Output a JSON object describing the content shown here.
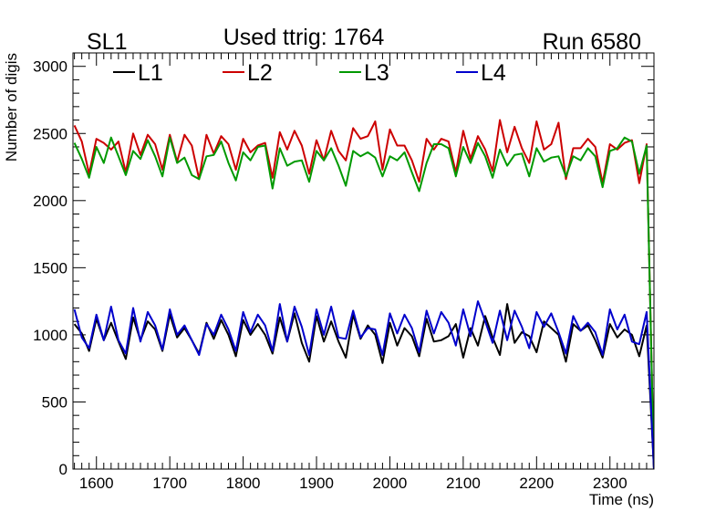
{
  "header": {
    "left_label": "SL1",
    "center_label": "Used ttrig: 1764",
    "right_label": "Run 6580"
  },
  "chart_data": {
    "type": "line",
    "title": "Used ttrig: 1764",
    "xlabel": "Time (ns)",
    "ylabel": "Number of digis",
    "xlim": [
      1568,
      2360
    ],
    "ylim": [
      0,
      3100
    ],
    "x_ticks": [
      1600,
      1700,
      1800,
      1900,
      2000,
      2100,
      2200,
      2300
    ],
    "y_ticks": [
      0,
      500,
      1000,
      1500,
      2000,
      2500,
      3000
    ],
    "legend_position": "top",
    "x": [
      1570,
      1580,
      1590,
      1600,
      1610,
      1620,
      1630,
      1640,
      1650,
      1660,
      1670,
      1680,
      1690,
      1700,
      1710,
      1720,
      1730,
      1740,
      1750,
      1760,
      1770,
      1780,
      1790,
      1800,
      1810,
      1820,
      1830,
      1840,
      1850,
      1860,
      1870,
      1880,
      1890,
      1900,
      1910,
      1920,
      1930,
      1940,
      1950,
      1960,
      1970,
      1980,
      1990,
      2000,
      2010,
      2020,
      2030,
      2040,
      2050,
      2060,
      2070,
      2080,
      2090,
      2100,
      2110,
      2120,
      2130,
      2140,
      2150,
      2160,
      2170,
      2180,
      2190,
      2200,
      2210,
      2220,
      2230,
      2240,
      2250,
      2260,
      2270,
      2280,
      2290,
      2300,
      2310,
      2320,
      2330,
      2340,
      2350,
      2360
    ],
    "series": [
      {
        "name": "L1",
        "color": "#000000",
        "values": [
          1080,
          1010,
          880,
          1120,
          960,
          1090,
          950,
          820,
          1130,
          960,
          1100,
          1040,
          880,
          1150,
          980,
          1050,
          960,
          860,
          1090,
          970,
          1110,
          1000,
          840,
          1110,
          1000,
          1080,
          1000,
          860,
          1130,
          950,
          1160,
          940,
          800,
          1140,
          950,
          1100,
          950,
          830,
          1150,
          970,
          1070,
          1000,
          790,
          1090,
          920,
          1050,
          990,
          840,
          1120,
          950,
          960,
          990,
          1080,
          830,
          1050,
          920,
          1140,
          980,
          850,
          1230,
          940,
          1020,
          990,
          870,
          1100,
          1050,
          1000,
          800,
          1080,
          1030,
          1070,
          960,
          830,
          1080,
          980,
          1040,
          1000,
          840,
          1070,
          0
        ]
      },
      {
        "name": "L2",
        "color": "#cc0000",
        "values": [
          2560,
          2440,
          2200,
          2460,
          2430,
          2380,
          2440,
          2210,
          2500,
          2340,
          2490,
          2420,
          2230,
          2490,
          2290,
          2490,
          2410,
          2160,
          2490,
          2350,
          2480,
          2420,
          2230,
          2460,
          2360,
          2410,
          2430,
          2170,
          2510,
          2380,
          2520,
          2410,
          2200,
          2450,
          2300,
          2520,
          2370,
          2300,
          2540,
          2460,
          2480,
          2590,
          2230,
          2530,
          2410,
          2410,
          2300,
          2140,
          2460,
          2380,
          2460,
          2440,
          2210,
          2520,
          2310,
          2480,
          2380,
          2220,
          2600,
          2360,
          2550,
          2390,
          2280,
          2590,
          2380,
          2420,
          2580,
          2160,
          2390,
          2390,
          2460,
          2400,
          2130,
          2420,
          2380,
          2430,
          2450,
          2130,
          2420,
          0
        ]
      },
      {
        "name": "L3",
        "color": "#009900",
        "values": [
          2430,
          2310,
          2170,
          2400,
          2280,
          2470,
          2330,
          2190,
          2370,
          2310,
          2450,
          2330,
          2180,
          2470,
          2280,
          2320,
          2190,
          2160,
          2330,
          2340,
          2440,
          2280,
          2150,
          2360,
          2300,
          2400,
          2410,
          2090,
          2390,
          2260,
          2290,
          2300,
          2140,
          2370,
          2300,
          2390,
          2260,
          2110,
          2370,
          2330,
          2360,
          2320,
          2180,
          2330,
          2300,
          2360,
          2210,
          2070,
          2280,
          2420,
          2420,
          2390,
          2180,
          2400,
          2280,
          2430,
          2330,
          2170,
          2380,
          2260,
          2340,
          2350,
          2180,
          2390,
          2290,
          2320,
          2330,
          2180,
          2330,
          2300,
          2390,
          2330,
          2100,
          2370,
          2390,
          2470,
          2440,
          2200,
          2410,
          0
        ]
      },
      {
        "name": "L4",
        "color": "#0000cc",
        "values": [
          1190,
          980,
          900,
          1150,
          960,
          1210,
          960,
          860,
          1200,
          950,
          1170,
          1070,
          890,
          1190,
          1000,
          1070,
          960,
          850,
          1080,
          1000,
          1150,
          1040,
          880,
          1170,
          1020,
          1150,
          1070,
          880,
          1230,
          950,
          1210,
          1060,
          850,
          1190,
          1000,
          1210,
          980,
          970,
          1180,
          980,
          1050,
          1040,
          850,
          1160,
          1010,
          1150,
          1050,
          870,
          1180,
          1010,
          1170,
          1090,
          920,
          1190,
          990,
          1250,
          1100,
          940,
          1180,
          960,
          1180,
          1060,
          900,
          1170,
          1060,
          1160,
          1020,
          860,
          1140,
          1030,
          1090,
          1020,
          850,
          1190,
          1040,
          1150,
          950,
          930,
          1170,
          0
        ]
      }
    ]
  }
}
